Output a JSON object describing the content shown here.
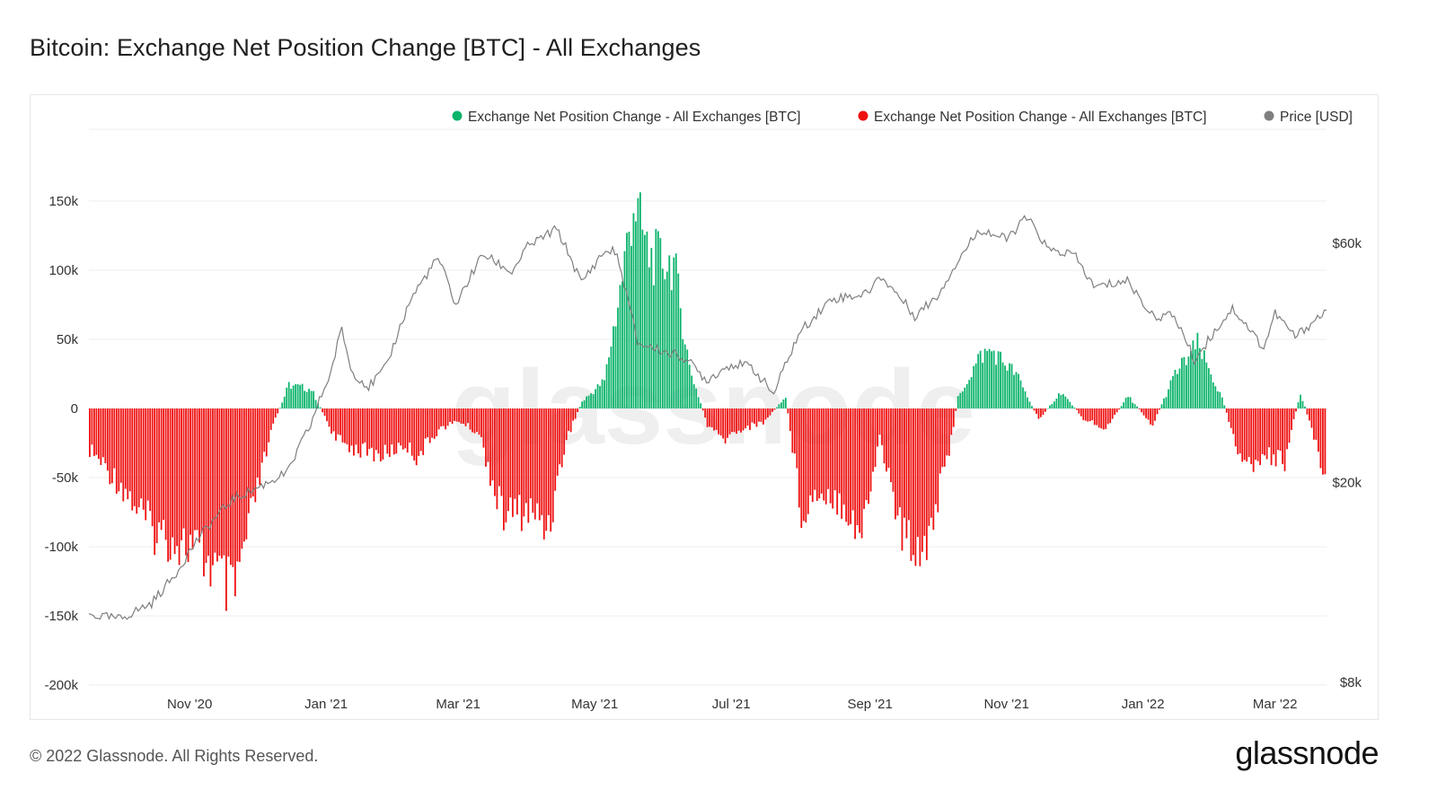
{
  "title": "Bitcoin: Exchange Net Position Change [BTC] - All Exchanges",
  "footer": {
    "copyright": "© 2022 Glassnode. All Rights Reserved.",
    "brand": "glassnode"
  },
  "colors": {
    "positive": "#0bb36b",
    "negative": "#ee1010",
    "price": "#7f7f7f",
    "grid": "#ececec",
    "watermark": "#efefef"
  },
  "chart_data": {
    "type": "bar",
    "title": "Bitcoin: Exchange Net Position Change [BTC] - All Exchanges",
    "legend": [
      {
        "label": "Exchange Net Position Change - All Exchanges [BTC]",
        "color": "#0bb36b"
      },
      {
        "label": "Exchange Net Position Change - All Exchanges [BTC]",
        "color": "#ee1010"
      },
      {
        "label": "Price [USD]",
        "color": "#7f7f7f"
      }
    ],
    "legend_position": "top-right",
    "watermark": "glassnode",
    "x_ticks": [
      "Nov '20",
      "Jan '21",
      "Mar '21",
      "May '21",
      "Jul '21",
      "Sep '21",
      "Nov '21",
      "Jan '22",
      "Mar '22"
    ],
    "x_range": [
      "2020-09-17",
      "2022-03-24"
    ],
    "y_left": {
      "ticks": [
        150000,
        100000,
        50000,
        0,
        -50000,
        -100000,
        -150000,
        -200000
      ],
      "tick_labels": [
        "150k",
        "100k",
        "50k",
        "0",
        "-50k",
        "-100k",
        "-150k",
        "-200k"
      ],
      "ylim": [
        -200000,
        200000
      ]
    },
    "y_right": {
      "scale": "log",
      "tick_labels": [
        "$60k",
        "$20k",
        "$8k"
      ],
      "ticks": [
        60000,
        20000,
        8000
      ],
      "ylim": [
        8000,
        102000
      ]
    },
    "net_position_series": {
      "name": "Exchange Net Position Change - All Exchanges [BTC]",
      "unit": "BTC",
      "dates": [
        "2020-09-17",
        "2020-10-01",
        "2020-10-15",
        "2020-11-01",
        "2020-11-10",
        "2020-11-20",
        "2020-12-01",
        "2020-12-08",
        "2020-12-15",
        "2020-12-25",
        "2021-01-05",
        "2021-01-12",
        "2021-01-25",
        "2021-02-05",
        "2021-02-10",
        "2021-02-20",
        "2021-03-01",
        "2021-03-10",
        "2021-03-20",
        "2021-04-01",
        "2021-04-10",
        "2021-04-18",
        "2021-04-25",
        "2021-05-05",
        "2021-05-12",
        "2021-05-18",
        "2021-05-25",
        "2021-06-05",
        "2021-06-12",
        "2021-06-20",
        "2021-06-27",
        "2021-07-05",
        "2021-07-15",
        "2021-07-25",
        "2021-08-01",
        "2021-08-10",
        "2021-08-20",
        "2021-08-28",
        "2021-09-05",
        "2021-09-15",
        "2021-09-25",
        "2021-10-05",
        "2021-10-10",
        "2021-10-20",
        "2021-10-25",
        "2021-11-05",
        "2021-11-15",
        "2021-11-25",
        "2021-12-05",
        "2021-12-15",
        "2021-12-25",
        "2022-01-05",
        "2022-01-15",
        "2022-01-25",
        "2022-02-05",
        "2022-02-15",
        "2022-02-25",
        "2022-03-05",
        "2022-03-12",
        "2022-03-24"
      ],
      "values": [
        -30000,
        -55000,
        -88000,
        -100000,
        -112000,
        -138000,
        -58000,
        -12000,
        17000,
        14000,
        -22000,
        -28000,
        -34000,
        -26000,
        -35000,
        -15000,
        -9000,
        -18000,
        -76000,
        -74000,
        -85000,
        -22000,
        5000,
        20000,
        85000,
        150000,
        110000,
        105000,
        30000,
        -12000,
        -23000,
        -15000,
        -10000,
        8000,
        -74000,
        -58000,
        -68000,
        -92000,
        -20000,
        -92000,
        -100000,
        -40000,
        8000,
        38000,
        42000,
        25000,
        -8000,
        12000,
        -7000,
        -15000,
        9000,
        -12000,
        25000,
        46000,
        7000,
        -44000,
        -34000,
        -38000,
        12000,
        -52000
      ]
    },
    "price_series": {
      "name": "Price [USD]",
      "unit": "USD",
      "dates": [
        "2020-09-17",
        "2020-10-01",
        "2020-10-15",
        "2020-10-25",
        "2020-11-05",
        "2020-11-20",
        "2020-12-01",
        "2020-12-15",
        "2020-12-25",
        "2021-01-03",
        "2021-01-08",
        "2021-01-12",
        "2021-01-20",
        "2021-01-28",
        "2021-02-08",
        "2021-02-20",
        "2021-02-28",
        "2021-03-12",
        "2021-03-25",
        "2021-04-01",
        "2021-04-14",
        "2021-04-25",
        "2021-05-05",
        "2021-05-10",
        "2021-05-20",
        "2021-06-01",
        "2021-06-10",
        "2021-06-20",
        "2021-07-01",
        "2021-07-10",
        "2021-07-20",
        "2021-08-01",
        "2021-08-15",
        "2021-08-30",
        "2021-09-06",
        "2021-09-21",
        "2021-10-01",
        "2021-10-10",
        "2021-10-20",
        "2021-11-01",
        "2021-11-10",
        "2021-11-20",
        "2021-12-01",
        "2021-12-10",
        "2021-12-25",
        "2022-01-05",
        "2022-01-15",
        "2022-01-24",
        "2022-02-10",
        "2022-02-24",
        "2022-03-01",
        "2022-03-10",
        "2022-03-24"
      ],
      "values": [
        10900,
        10700,
        11500,
        13000,
        15500,
        18500,
        19500,
        21000,
        26000,
        33000,
        40500,
        33500,
        31000,
        34000,
        46500,
        56000,
        45000,
        57000,
        52500,
        59000,
        64000,
        50000,
        57500,
        58000,
        38000,
        36500,
        35500,
        32000,
        34500,
        34000,
        30000,
        40000,
        46500,
        47500,
        51500,
        43000,
        47000,
        55000,
        64000,
        61000,
        67500,
        58000,
        57000,
        49000,
        50500,
        43000,
        43000,
        35000,
        44500,
        37000,
        43500,
        39000,
        44000
      ]
    }
  }
}
